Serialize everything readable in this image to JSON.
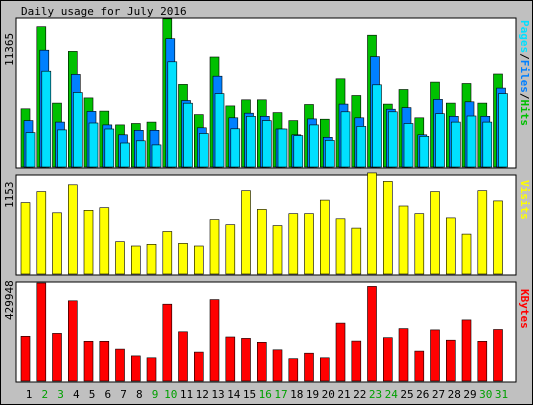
{
  "title": "Daily usage for July 2016",
  "legends": {
    "top": [
      {
        "text": "Pages",
        "color": "#00e0ff"
      },
      {
        "text": "/",
        "color": "#000000"
      },
      {
        "text": "Files",
        "color": "#0080ff"
      },
      {
        "text": "/",
        "color": "#000000"
      },
      {
        "text": "Hits",
        "color": "#00c000"
      }
    ],
    "middle": {
      "text": "Visits",
      "color": "#ffff00"
    },
    "bottom": {
      "text": "KBytes",
      "color": "#ff0000"
    }
  },
  "colors": {
    "background": "#c0c0c0",
    "panel": "#ffffff",
    "hits": "#00c000",
    "files": "#0080ff",
    "pages": "#00e0ff",
    "visits": "#ffff00",
    "kbytes": "#ff0000",
    "weekend_label": "#00a000",
    "weekday_label": "#000000"
  },
  "chart_data": [
    {
      "type": "bar",
      "name": "hits-files-pages",
      "ymax_label": "11365",
      "ylim": [
        0,
        11365
      ],
      "categories": [
        "1",
        "2",
        "3",
        "4",
        "5",
        "6",
        "7",
        "8",
        "9",
        "10",
        "11",
        "12",
        "13",
        "14",
        "15",
        "16",
        "17",
        "18",
        "19",
        "20",
        "21",
        "22",
        "23",
        "24",
        "25",
        "26",
        "27",
        "28",
        "29",
        "30",
        "31"
      ],
      "series": [
        {
          "name": "Hits",
          "values": [
            4470,
            10770,
            4910,
            8880,
            5310,
            4290,
            3230,
            3340,
            3450,
            11380,
            6340,
            4020,
            8450,
            4690,
            5160,
            5160,
            4180,
            3560,
            4800,
            3670,
            6770,
            5490,
            10120,
            4830,
            5950,
            3780,
            6520,
            4910,
            6410,
            4910,
            7140
          ]
        },
        {
          "name": "Files",
          "values": [
            3560,
            8970,
            3450,
            7110,
            4270,
            3230,
            2470,
            2820,
            2820,
            9850,
            5110,
            3010,
            6970,
            3780,
            4130,
            3890,
            2920,
            2470,
            3690,
            2280,
            4830,
            3780,
            8480,
            4440,
            4560,
            2470,
            5190,
            3890,
            5010,
            3890,
            6060
          ]
        },
        {
          "name": "Pages",
          "values": [
            2640,
            7360,
            2850,
            5720,
            3380,
            2920,
            1840,
            2010,
            1700,
            8080,
            4900,
            2570,
            5640,
            2930,
            3890,
            3560,
            2920,
            2410,
            3230,
            2040,
            4240,
            3120,
            6310,
            4240,
            3340,
            2360,
            4090,
            3450,
            3920,
            3450,
            5640
          ]
        }
      ]
    },
    {
      "type": "bar",
      "name": "visits",
      "ymax_label": "1153",
      "ylim": [
        0,
        1153
      ],
      "categories": [
        "1",
        "2",
        "3",
        "4",
        "5",
        "6",
        "7",
        "8",
        "9",
        "10",
        "11",
        "12",
        "13",
        "14",
        "15",
        "16",
        "17",
        "18",
        "19",
        "20",
        "21",
        "22",
        "23",
        "24",
        "25",
        "26",
        "27",
        "28",
        "29",
        "30",
        "31"
      ],
      "series": [
        {
          "name": "Visits",
          "values": [
            840,
            970,
            720,
            1050,
            750,
            780,
            380,
            330,
            350,
            500,
            360,
            330,
            640,
            580,
            980,
            760,
            570,
            710,
            710,
            870,
            650,
            540,
            1190,
            1090,
            800,
            710,
            970,
            660,
            470,
            980,
            860
          ]
        }
      ]
    },
    {
      "type": "bar",
      "name": "kbytes",
      "ymax_label": "429948",
      "ylim": [
        0,
        429948
      ],
      "categories": [
        "1",
        "2",
        "3",
        "4",
        "5",
        "6",
        "7",
        "8",
        "9",
        "10",
        "11",
        "12",
        "13",
        "14",
        "15",
        "16",
        "17",
        "18",
        "19",
        "20",
        "21",
        "22",
        "23",
        "24",
        "25",
        "26",
        "27",
        "28",
        "29",
        "30",
        "31"
      ],
      "series": [
        {
          "name": "KBytes",
          "values": [
            196000,
            432000,
            209000,
            352000,
            174000,
            174000,
            140000,
            110000,
            102000,
            337000,
            216000,
            127000,
            357000,
            193000,
            187000,
            170000,
            137000,
            98000,
            122000,
            102000,
            254000,
            175000,
            415000,
            190000,
            230000,
            131000,
            224000,
            179000,
            268000,
            174000,
            226000
          ]
        }
      ]
    }
  ],
  "x_labels": [
    {
      "text": "1",
      "weekend": false
    },
    {
      "text": "2",
      "weekend": true
    },
    {
      "text": "3",
      "weekend": true
    },
    {
      "text": "4",
      "weekend": false
    },
    {
      "text": "5",
      "weekend": false
    },
    {
      "text": "6",
      "weekend": false
    },
    {
      "text": "7",
      "weekend": false
    },
    {
      "text": "8",
      "weekend": false
    },
    {
      "text": "9",
      "weekend": true
    },
    {
      "text": "10",
      "weekend": true
    },
    {
      "text": "11",
      "weekend": false
    },
    {
      "text": "12",
      "weekend": false
    },
    {
      "text": "13",
      "weekend": false
    },
    {
      "text": "14",
      "weekend": false
    },
    {
      "text": "15",
      "weekend": false
    },
    {
      "text": "16",
      "weekend": true
    },
    {
      "text": "17",
      "weekend": true
    },
    {
      "text": "18",
      "weekend": false
    },
    {
      "text": "19",
      "weekend": false
    },
    {
      "text": "20",
      "weekend": false
    },
    {
      "text": "21",
      "weekend": false
    },
    {
      "text": "22",
      "weekend": false
    },
    {
      "text": "23",
      "weekend": true
    },
    {
      "text": "24",
      "weekend": true
    },
    {
      "text": "25",
      "weekend": false
    },
    {
      "text": "26",
      "weekend": false
    },
    {
      "text": "27",
      "weekend": false
    },
    {
      "text": "28",
      "weekend": false
    },
    {
      "text": "29",
      "weekend": false
    },
    {
      "text": "30",
      "weekend": true
    },
    {
      "text": "31",
      "weekend": true
    }
  ]
}
